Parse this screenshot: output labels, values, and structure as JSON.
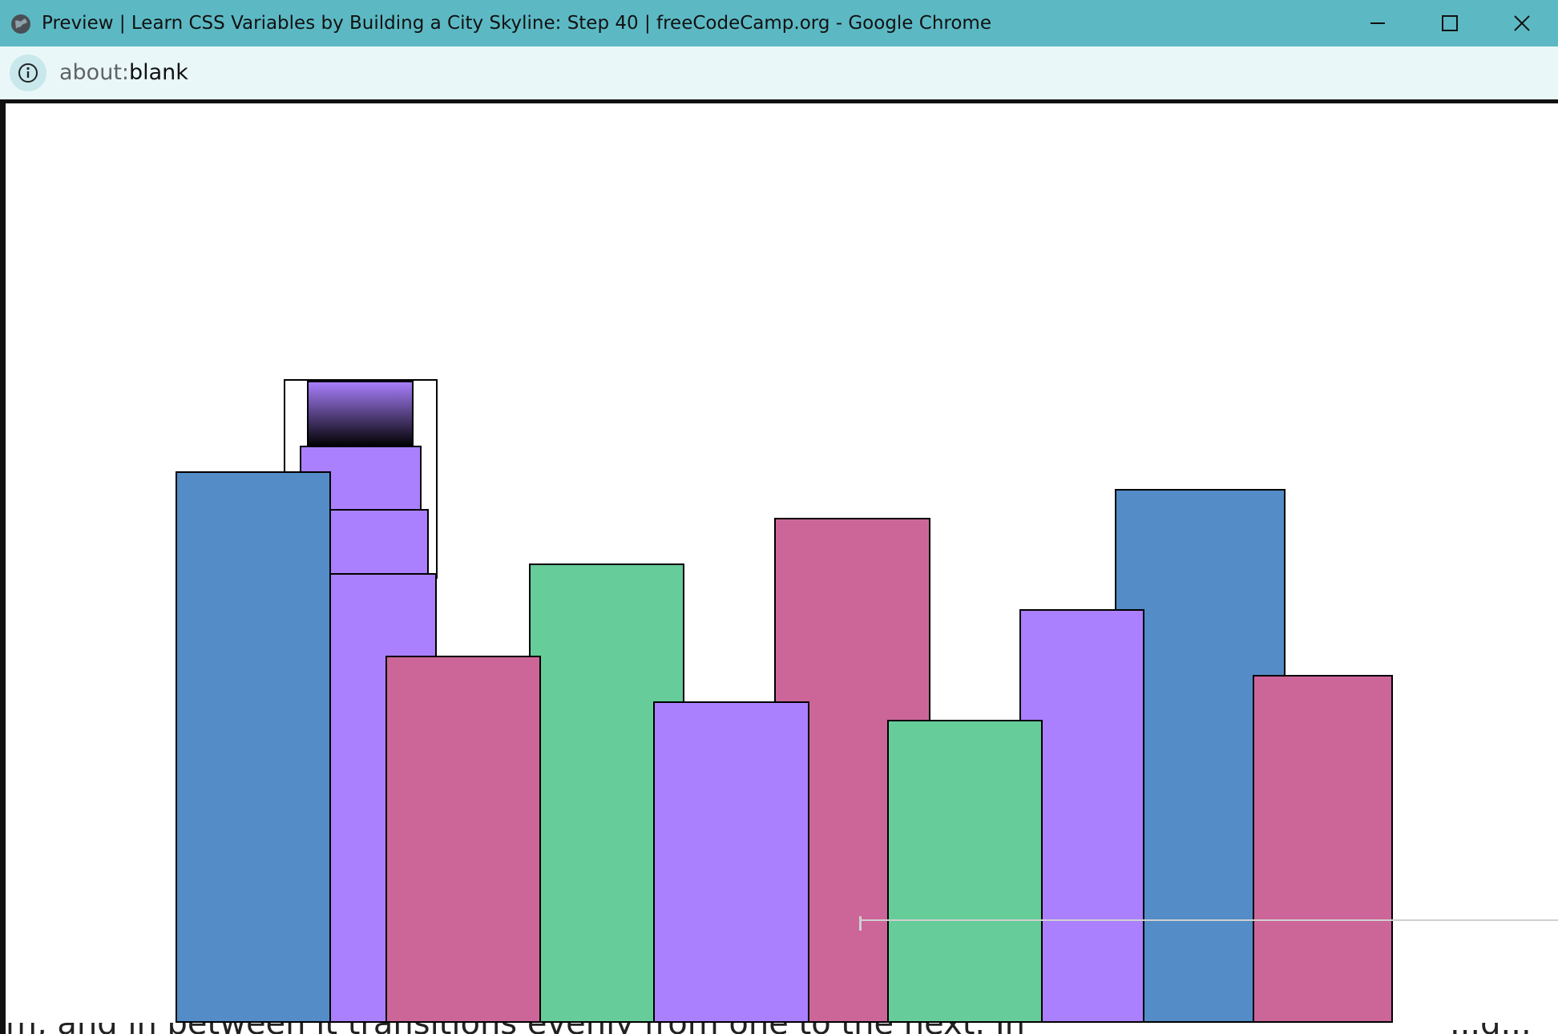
{
  "window": {
    "title": "Preview | Learn CSS Variables by Building a City Skyline: Step 40 | freeCodeCamp.org - Google Chrome",
    "app_icon": "globe-icon",
    "controls": {
      "minimize_icon": "minimize-icon",
      "maximize_icon": "maximize-icon",
      "close_icon": "close-icon"
    }
  },
  "address_bar": {
    "info_icon": "info-icon",
    "url_scheme": "about:",
    "url_rest": "blank"
  },
  "page": {
    "underlying_text": "m, and in between it transitions evenly from one to the next. In",
    "underlying_text_right": "...d...",
    "colors": {
      "building_color1": "#aa80ff",
      "building_color2": "#66cc99",
      "building_color3": "#cc6699",
      "building_color4": "#538cc6",
      "gradient_end": "#000000",
      "outline": "#000000",
      "background": "#ffffff"
    },
    "buildings": [
      {
        "id": "bb1",
        "color": "building_color1"
      },
      {
        "id": "bb2",
        "color": "building_color4"
      },
      {
        "id": "bb3",
        "color": "building_color3"
      },
      {
        "id": "bb4",
        "color": "building_color2"
      },
      {
        "id": "bb5",
        "color": "building_color1"
      },
      {
        "id": "bb6",
        "color": "building_color3"
      },
      {
        "id": "bb7",
        "color": "building_color2"
      },
      {
        "id": "bb8",
        "color": "building_color1"
      },
      {
        "id": "bb9",
        "color": "building_color4"
      },
      {
        "id": "bb10",
        "color": "building_color3"
      }
    ]
  }
}
